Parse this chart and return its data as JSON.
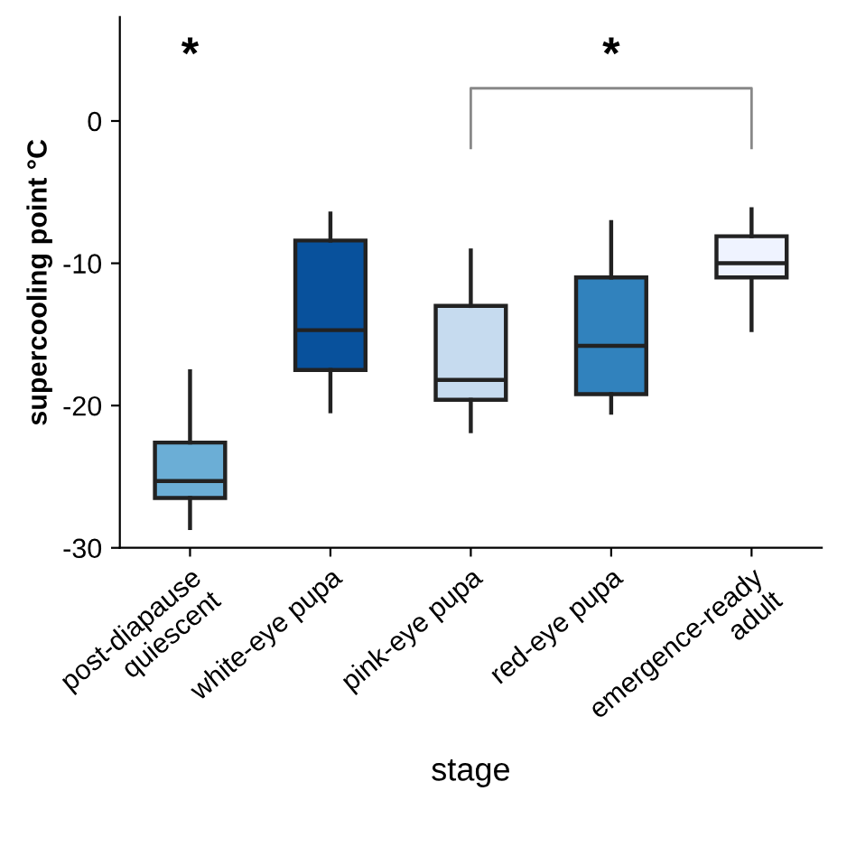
{
  "chart_data": {
    "type": "box",
    "xlabel": "stage",
    "ylabel": "supercooling point °C",
    "categories": [
      "post-diapause\nquiescent",
      "white-eye pupa",
      "pink-eye pupa",
      "red-eye pupa",
      "emergence-ready\nadult"
    ],
    "boxes": [
      {
        "low": -28.6,
        "q1": -26.5,
        "median": -25.3,
        "q3": -22.6,
        "high": -17.6
      },
      {
        "low": -20.4,
        "q1": -17.5,
        "median": -14.7,
        "q3": -8.4,
        "high": -6.5
      },
      {
        "low": -21.8,
        "q1": -19.6,
        "median": -18.2,
        "q3": -13.0,
        "high": -9.1
      },
      {
        "low": -20.5,
        "q1": -19.2,
        "median": -15.8,
        "q3": -11.0,
        "high": -7.1
      },
      {
        "low": -14.7,
        "q1": -11.0,
        "median": -10.0,
        "q3": -8.1,
        "high": -6.2
      }
    ],
    "colors": [
      "#6baed6",
      "#08519c",
      "#c6dbef",
      "#3182bd",
      "#eff3ff"
    ],
    "ylim": [
      -30,
      7.3
    ],
    "yticks": [
      -30,
      -20,
      -10,
      0
    ],
    "grid": false,
    "annotations": [
      "*",
      "*"
    ]
  }
}
